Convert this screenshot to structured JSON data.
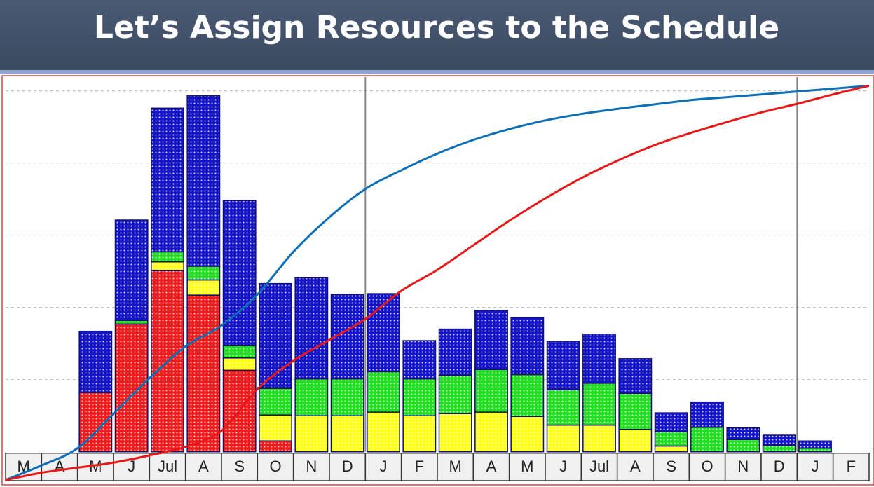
{
  "chart_data": {
    "type": "bar",
    "title": "Let’s Assign Resources to the Schedule",
    "categories": [
      "M",
      "A",
      "M",
      "J",
      "Jul",
      "A",
      "S",
      "O",
      "N",
      "D",
      "J",
      "F",
      "M",
      "A",
      "M",
      "J",
      "Jul",
      "A",
      "S",
      "O",
      "N",
      "D",
      "J",
      "F"
    ],
    "stacked": true,
    "ylim": [
      -42,
      519
    ],
    "ygrid": [
      100,
      200,
      300,
      400,
      500
    ],
    "series": [
      {
        "color": "#ee1c1c",
        "values": [
          0,
          0,
          82,
          177,
          251,
          217,
          113,
          15,
          0,
          0,
          0,
          0,
          0,
          0,
          0,
          0,
          0,
          0,
          0,
          0,
          0,
          0,
          0,
          0
        ]
      },
      {
        "color": "#ffff1a",
        "values": [
          0,
          0,
          0,
          0,
          12,
          21,
          17,
          36,
          50,
          50,
          55,
          50,
          53,
          55,
          49,
          37,
          37,
          31,
          8,
          0,
          0,
          0,
          0,
          0
        ]
      },
      {
        "color": "#22dd22",
        "values": [
          0,
          0,
          0,
          5,
          14,
          19,
          17,
          37,
          51,
          51,
          56,
          51,
          53,
          59,
          58,
          49,
          58,
          50,
          20,
          34,
          17,
          9,
          5,
          0
        ]
      },
      {
        "color": "#1414c8",
        "values": [
          0,
          0,
          85,
          139,
          199,
          236,
          201,
          145,
          140,
          117,
          108,
          53,
          64,
          82,
          79,
          67,
          68,
          48,
          26,
          35,
          16,
          14,
          10,
          0
        ]
      }
    ],
    "xlim": [
      0,
      24
    ],
    "xdividers": [
      10,
      22
    ],
    "lines": [
      {
        "color": "#0b6fb8",
        "x": [
          0,
          1,
          2,
          3,
          4,
          5,
          6,
          7,
          8,
          9,
          10,
          11,
          12,
          13,
          14,
          15,
          16,
          17,
          18,
          19,
          20,
          21,
          22,
          23,
          24
        ],
        "values": [
          -39,
          -19,
          5,
          53,
          102,
          146,
          175,
          218,
          277,
          325,
          364,
          390,
          413,
          432,
          447,
          459,
          468,
          475,
          481,
          487,
          491,
          495,
          499,
          503,
          507
        ]
      },
      {
        "color": "#e81818",
        "x": [
          0,
          1,
          2,
          3,
          4,
          5,
          6,
          7,
          8,
          9,
          10,
          11,
          12,
          13,
          14,
          15,
          16,
          17,
          18,
          19,
          20,
          21,
          22,
          23,
          24
        ],
        "values": [
          -39,
          -29,
          -22,
          -15,
          -5,
          7,
          29,
          87,
          126,
          155,
          184,
          223,
          252,
          286,
          320,
          351,
          379,
          403,
          424,
          441,
          456,
          470,
          482,
          495,
          507
        ]
      }
    ]
  }
}
